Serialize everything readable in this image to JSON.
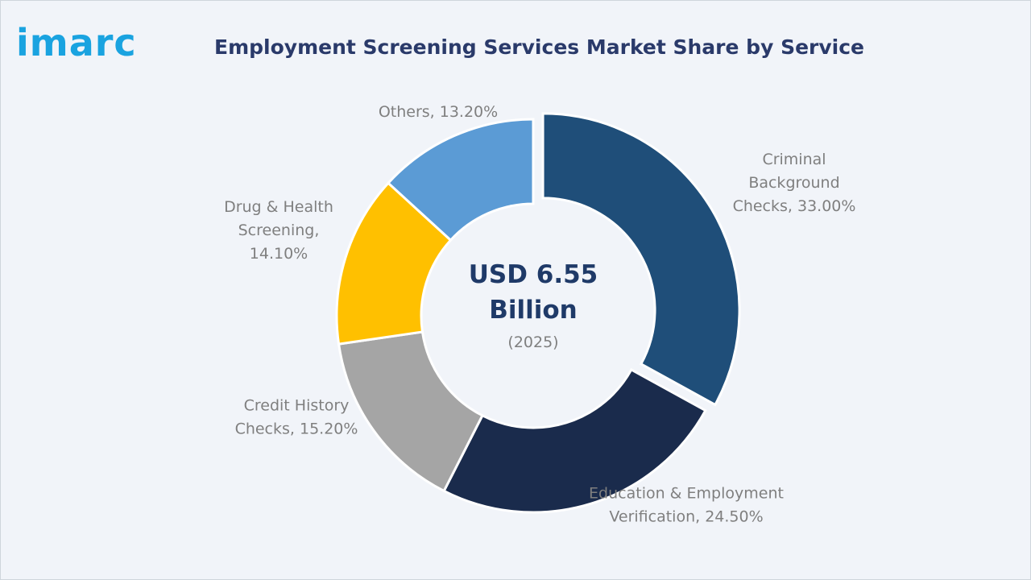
{
  "brand": {
    "logo_text": "imarc"
  },
  "colors": {
    "criminal": "#1f4e79",
    "education": "#1a2b4c",
    "credit": "#a5a5a5",
    "drug": "#ffc000",
    "others": "#5b9bd5"
  },
  "chart_data": {
    "type": "pie",
    "variant": "donut",
    "title": "Employment Screening Services Market Share by Service",
    "center_text": {
      "line1": "USD 6.55",
      "line2": "Billion",
      "line3": "(2025)"
    },
    "unit": "%",
    "slices": [
      {
        "label": "Criminal Background Checks",
        "value": 33.0,
        "display": [
          "Criminal",
          "Background",
          "Checks, 33.00%"
        ],
        "color_key": "criminal",
        "exploded": true
      },
      {
        "label": "Education & Employment Verification",
        "value": 24.5,
        "display": [
          "Education & Employment",
          "Verification, 24.50%"
        ],
        "color_key": "education",
        "exploded": false
      },
      {
        "label": "Credit History Checks",
        "value": 15.2,
        "display": [
          "Credit History",
          "Checks, 15.20%"
        ],
        "color_key": "credit",
        "exploded": false
      },
      {
        "label": "Drug & Health Screening",
        "value": 14.1,
        "display": [
          "Drug & Health",
          "Screening,",
          "14.10%"
        ],
        "color_key": "drug",
        "exploded": false
      },
      {
        "label": "Others",
        "value": 13.2,
        "display": [
          "Others, 13.20%"
        ],
        "color_key": "others",
        "exploded": false
      }
    ]
  }
}
